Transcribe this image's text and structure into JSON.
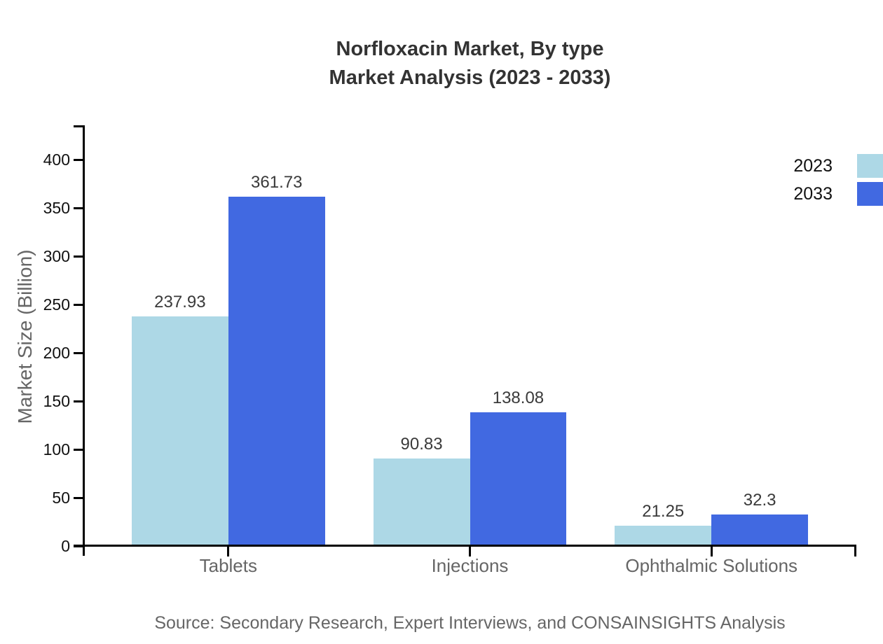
{
  "title": {
    "line1": "Norfloxacin Market, By type",
    "line2": "Market Analysis (2023 - 2033)"
  },
  "legend": [
    {
      "label": "2023",
      "color": "#ADD8E6"
    },
    {
      "label": "2033",
      "color": "#4169E1"
    }
  ],
  "axis": {
    "y_label": "Market Size (Billion)"
  },
  "source": "Source: Secondary Research, Expert Interviews, and CONSAINSIGHTS Analysis",
  "chart_data": {
    "type": "bar",
    "title": "Norfloxacin Market, By type\nMarket Analysis (2023 - 2033)",
    "categories": [
      "Tablets",
      "Injections",
      "Ophthalmic Solutions"
    ],
    "series": [
      {
        "name": "2023",
        "color": "#ADD8E6",
        "values": [
          237.93,
          90.83,
          21.25
        ]
      },
      {
        "name": "2033",
        "color": "#4169E1",
        "values": [
          361.73,
          138.08,
          32.3
        ]
      }
    ],
    "xlabel": "",
    "ylabel": "Market Size (Billion)",
    "ylim": [
      0,
      435
    ],
    "yticks": [
      0,
      50,
      100,
      150,
      200,
      250,
      300,
      350,
      400
    ],
    "grid": false,
    "legend_position": "top-right"
  }
}
